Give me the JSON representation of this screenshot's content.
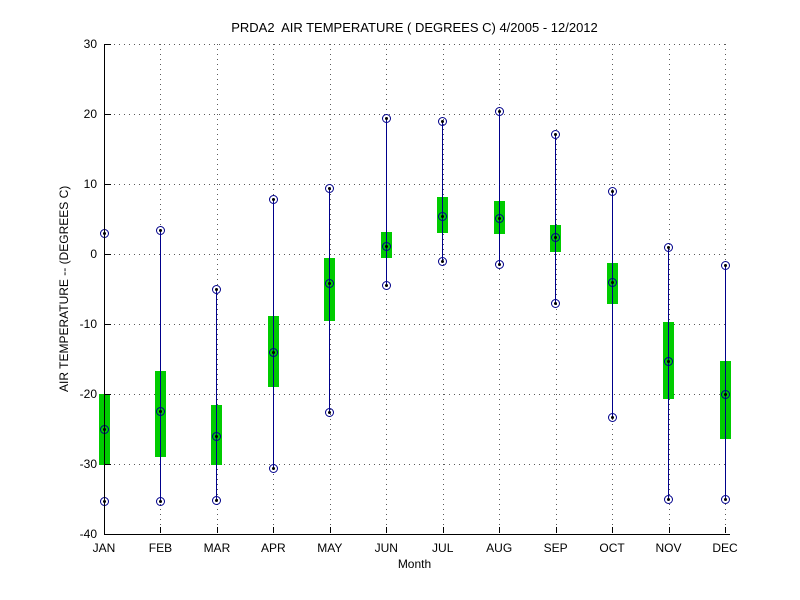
{
  "figure": {
    "background": "#ffffff"
  },
  "chart_data": {
    "type": "box",
    "title": "PRDA2  AIR TEMPERATURE ( DEGREES C) 4/2005 - 12/2012",
    "xlabel": "Month",
    "ylabel": "AIR TEMPERATURE -- (DEGREES C)",
    "ylim": [
      -40,
      30
    ],
    "yticks": [
      30,
      20,
      10,
      0,
      -10,
      -20,
      -30,
      -40
    ],
    "grid": true,
    "legend": "none",
    "categories": [
      "JAN",
      "FEB",
      "MAR",
      "APR",
      "MAY",
      "JUN",
      "JUL",
      "AUG",
      "SEP",
      "OCT",
      "NOV",
      "DEC"
    ],
    "series": [
      {
        "name": "whisker_low",
        "marker": "circle-dot",
        "values": [
          -35.3,
          -35.3,
          -35.2,
          -30.7,
          -22.6,
          -4.5,
          -1.1,
          -1.5,
          -7.0,
          -23.3,
          -35.1,
          -35.1
        ]
      },
      {
        "name": "box_low",
        "marker": "none",
        "values": [
          -30.2,
          -29.0,
          -30.2,
          -19.0,
          -9.6,
          -0.6,
          3.0,
          2.9,
          0.3,
          -7.1,
          -20.7,
          -26.4
        ]
      },
      {
        "name": "median",
        "marker": "circle-dot",
        "values": [
          -25.1,
          -22.5,
          -26.0,
          -14.1,
          -4.2,
          1.1,
          5.3,
          5.1,
          2.3,
          -4.1,
          -15.3,
          -20.0
        ]
      },
      {
        "name": "box_high",
        "marker": "none",
        "values": [
          -20.0,
          -16.7,
          -21.5,
          -8.8,
          -0.6,
          3.1,
          8.1,
          7.6,
          4.2,
          -1.3,
          -9.7,
          -15.3
        ]
      },
      {
        "name": "whisker_high",
        "marker": "circle-dot",
        "values": [
          3.0,
          3.3,
          -5.0,
          7.8,
          9.4,
          19.4,
          18.9,
          20.3,
          17.1,
          8.9,
          0.9,
          -1.6
        ]
      }
    ],
    "colors": {
      "box_fill": "#00cc00",
      "whisker_line": "#00008b",
      "marker_ring": "#00008b",
      "marker_dot": "#000000",
      "grid_dots": "#5a5a5a",
      "axis": "#000000"
    }
  }
}
